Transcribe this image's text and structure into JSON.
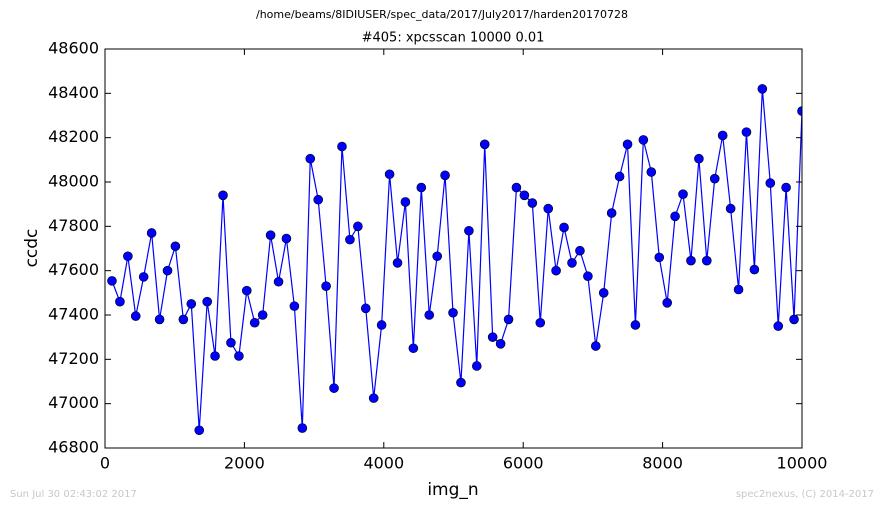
{
  "chart_data": {
    "type": "line",
    "header": "/home/beams/8IDIUSER/spec_data/2017/July2017/harden20170728",
    "title": "#405: xpcsscan 10000 0.01",
    "xlabel": "img_n",
    "ylabel": "ccdc",
    "footer_left": "Sun Jul 30 02:43:02 2017",
    "footer_right": "spec2nexus, (C) 2014-2017",
    "xlim": [
      0,
      10000
    ],
    "xticks": [
      0,
      2000,
      4000,
      6000,
      8000,
      10000
    ],
    "ylim": [
      46800,
      48600
    ],
    "yticks": [
      46800,
      47000,
      47200,
      47400,
      47600,
      47800,
      48000,
      48200,
      48400,
      48600
    ],
    "x": [
      100,
      214,
      328,
      441,
      555,
      669,
      783,
      897,
      1010,
      1124,
      1238,
      1352,
      1466,
      1579,
      1693,
      1807,
      1921,
      2034,
      2148,
      2262,
      2376,
      2490,
      2603,
      2717,
      2831,
      2945,
      3059,
      3172,
      3286,
      3400,
      3514,
      3628,
      3741,
      3855,
      3969,
      4083,
      4197,
      4310,
      4424,
      4538,
      4652,
      4766,
      4879,
      4993,
      5107,
      5221,
      5334,
      5448,
      5562,
      5676,
      5790,
      5903,
      6017,
      6131,
      6245,
      6359,
      6472,
      6586,
      6700,
      6814,
      6928,
      7041,
      7155,
      7269,
      7383,
      7497,
      7610,
      7724,
      7838,
      7952,
      8066,
      8179,
      8293,
      8407,
      8521,
      8634,
      8748,
      8862,
      8976,
      9090,
      9203,
      9317,
      9431,
      9545,
      9659,
      9772,
      9886,
      10000
    ],
    "series": [
      {
        "name": "ccdc",
        "color": "#0000ff",
        "values": [
          47554,
          47460,
          47665,
          47395,
          47572,
          47770,
          47380,
          47600,
          47710,
          47380,
          47450,
          46880,
          47460,
          47215,
          47940,
          47275,
          47215,
          47510,
          47365,
          47400,
          47760,
          47550,
          47745,
          47440,
          46890,
          48105,
          47920,
          47530,
          47070,
          48160,
          47740,
          47800,
          47430,
          47025,
          47355,
          48035,
          47635,
          47910,
          47250,
          47975,
          47400,
          47665,
          48030,
          47410,
          47095,
          47780,
          47170,
          48170,
          47300,
          47270,
          47380,
          47975,
          47940,
          47905,
          47365,
          47880,
          47600,
          47795,
          47635,
          47690,
          47575,
          47260,
          47500,
          47860,
          48025,
          48170,
          47355,
          48190,
          48045,
          47660,
          47455,
          47845,
          47945,
          47645,
          48105,
          47645,
          48015,
          48210,
          47880,
          47515,
          48225,
          47605,
          48420,
          47995,
          47350,
          47975,
          47380,
          48320
        ]
      }
    ]
  }
}
